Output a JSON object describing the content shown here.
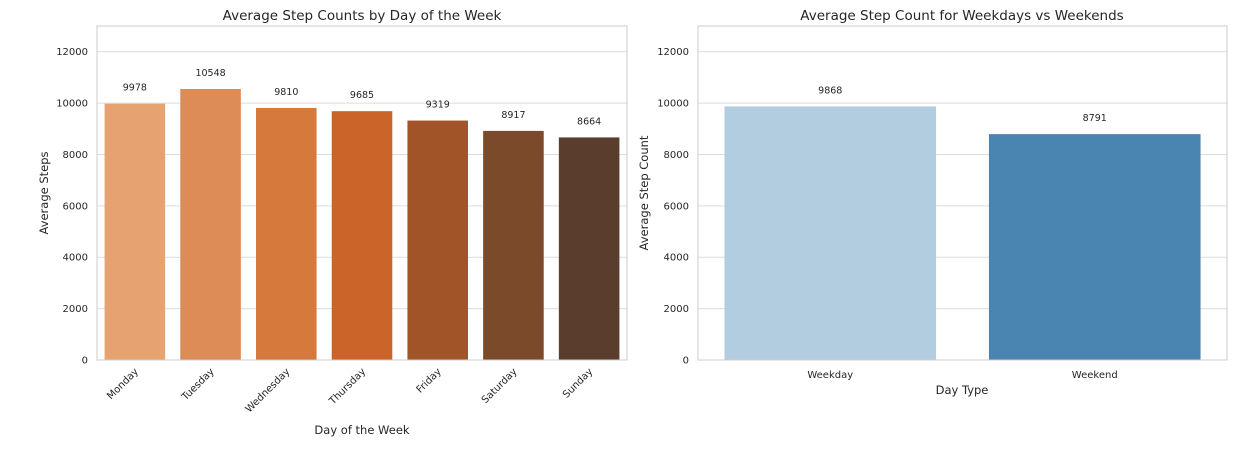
{
  "chart_data": [
    {
      "type": "bar",
      "title": "Average Step Counts by Day of the Week",
      "xlabel": "Day of the Week",
      "ylabel": "Average Steps",
      "ylim": [
        0,
        13000
      ],
      "yticks": [
        0,
        2000,
        4000,
        6000,
        8000,
        10000,
        12000
      ],
      "grid": true,
      "categories": [
        "Monday",
        "Tuesday",
        "Wednesday",
        "Thursday",
        "Friday",
        "Saturday",
        "Sunday"
      ],
      "values": [
        9978,
        10548,
        9810,
        9685,
        9319,
        8917,
        8664
      ],
      "colors": [
        "#e6a371",
        "#dd8c58",
        "#d5793d",
        "#cb6429",
        "#a25429",
        "#7b4a2b",
        "#5b3d2d"
      ],
      "x_tick_rotation": 45
    },
    {
      "type": "bar",
      "title": "Average Step Count for Weekdays vs Weekends",
      "xlabel": "Day Type",
      "ylabel": "Average Step Count",
      "ylim": [
        0,
        13000
      ],
      "yticks": [
        0,
        2000,
        4000,
        6000,
        8000,
        10000,
        12000
      ],
      "grid": true,
      "categories": [
        "Weekday",
        "Weekend"
      ],
      "values": [
        9868,
        8791
      ],
      "colors": [
        "#b3cde0",
        "#4a84b1"
      ],
      "x_tick_rotation": 0
    }
  ]
}
